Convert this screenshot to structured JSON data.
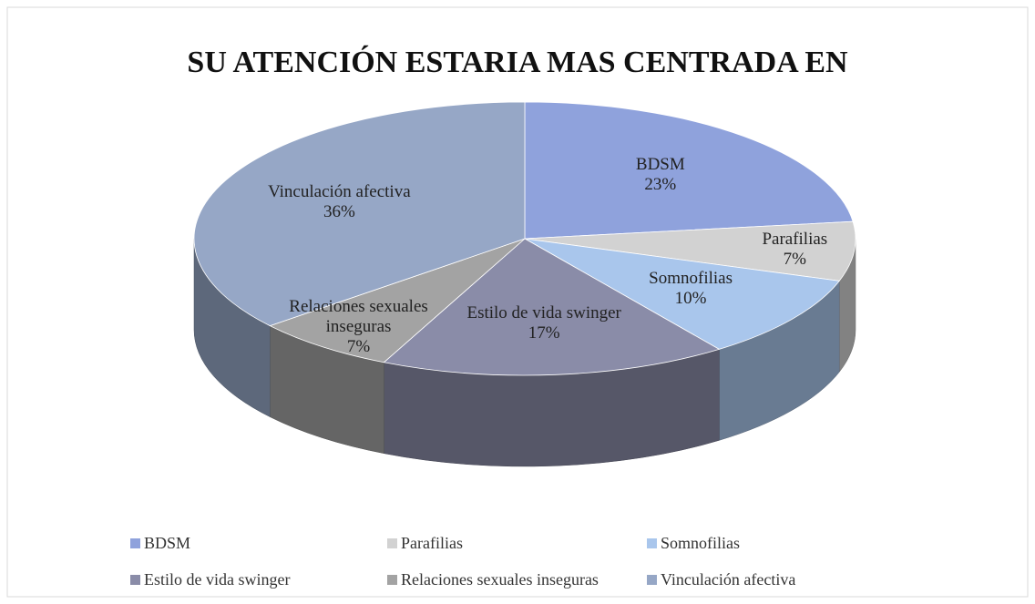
{
  "chart_data": {
    "type": "pie",
    "title": "SU ATENCIÓN ESTARIA MAS CENTRADA EN",
    "categories": [
      "BDSM",
      "Parafilias",
      "Somnofilias",
      "Estilo de vida swinger",
      "Relaciones sexuales inseguras",
      "Vinculación afectiva"
    ],
    "values": [
      23,
      7,
      10,
      17,
      7,
      36
    ],
    "value_labels": [
      "23%",
      "7%",
      "10%",
      "17%",
      "7%",
      "36%"
    ],
    "colors": [
      "#8fa2dc",
      "#d2d2d2",
      "#a9c6ec",
      "#8a8ca8",
      "#a3a3a3",
      "#96a7c6"
    ],
    "legend": "bottom"
  }
}
